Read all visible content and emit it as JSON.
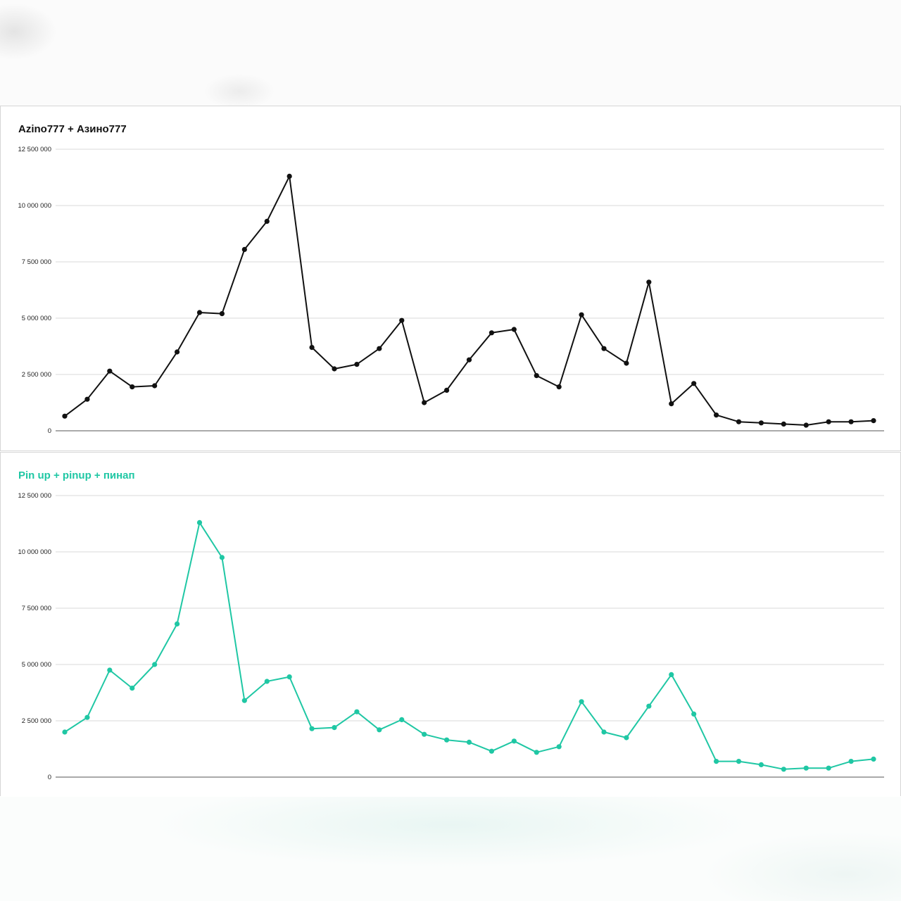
{
  "chart_data": [
    {
      "type": "line",
      "title": "Azino777 + Азино777",
      "color": "#111111",
      "ylim": [
        0,
        12500000
      ],
      "yticks": [
        0,
        2500000,
        5000000,
        7500000,
        10000000,
        12500000
      ],
      "ytick_labels": [
        "0",
        "2 500 000",
        "5 000 000",
        "7 500 000",
        "10 000 000",
        "12 500 000"
      ],
      "grid": true,
      "series": [
        {
          "values": [
            650000,
            1400000,
            2650000,
            1950000,
            2000000,
            3500000,
            5250000,
            5200000,
            8050000,
            9300000,
            11300000,
            3700000,
            2750000,
            2950000,
            3650000,
            4900000,
            1250000,
            1800000,
            3150000,
            4350000,
            4500000,
            2450000,
            1950000,
            5150000,
            3650000,
            3000000,
            6600000,
            1200000,
            2100000,
            700000,
            400000,
            350000,
            300000,
            250000,
            400000,
            400000,
            450000
          ]
        }
      ]
    },
    {
      "type": "line",
      "title": "Pin up + pinup + пинап",
      "color": "#1fc7a4",
      "ylim": [
        0,
        12500000
      ],
      "yticks": [
        0,
        2500000,
        5000000,
        7500000,
        10000000,
        12500000
      ],
      "ytick_labels": [
        "0",
        "2 500 000",
        "5 000 000",
        "7 500 000",
        "10 000 000",
        "12 500 000"
      ],
      "grid": true,
      "series": [
        {
          "values": [
            2000000,
            2650000,
            4750000,
            3950000,
            5000000,
            6800000,
            11300000,
            9750000,
            3400000,
            4250000,
            4450000,
            2150000,
            2200000,
            2900000,
            2100000,
            2550000,
            1900000,
            1650000,
            1550000,
            1150000,
            1600000,
            1100000,
            1350000,
            3350000,
            2000000,
            1750000,
            3150000,
            4550000,
            2800000,
            700000,
            700000,
            550000,
            350000,
            400000,
            400000,
            700000,
            800000
          ]
        }
      ]
    }
  ]
}
